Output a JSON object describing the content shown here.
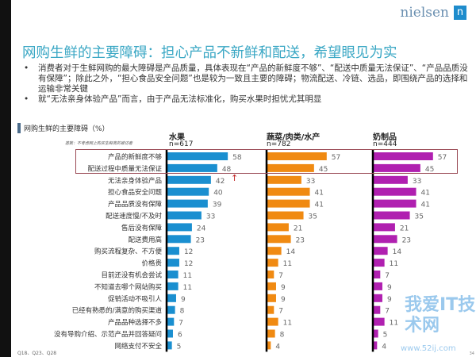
{
  "header": {
    "logo": "nielsen",
    "logo_mark": "n",
    "title": "网购生鲜的主要障碍：担心产品不新鲜和配送，希望眼见为实",
    "bullets": [
      "消费者对于生鲜网购的最大障碍是产品质量，具体表现在“产品的新鲜度不够”、“配送中质量无法保证”、“产品品质没有保障”；除此之外，“担心食品安全问题”也是较为一致且主要的障碍；物流配送、冷链、选品，即围绕产品的选择和运输非常关键",
      "就“无法亲身体验产品”而言，由于产品无法标准化，购买水果时担忧尤其明显"
    ]
  },
  "chart_data": {
    "type": "bar",
    "orientation": "horizontal",
    "title": "网购生鲜的主要障碍（%）",
    "base_note": "基数：不考虑网上购买生鲜类的被访者",
    "categories": [
      "产品的新鲜度不够",
      "配送过程中质量无法保证",
      "无法亲身体验产品",
      "担心食品安全问题",
      "产品品质没有保障",
      "配送速度慢/不及时",
      "售后没有保障",
      "配送费用高",
      "购买流程复杂、不方便",
      "价格贵",
      "目前还没有机会尝试",
      "不知道去哪个网站购买",
      "促销活动不吸引人",
      "已经有熟悉的/满意的购买渠道",
      "产品品种选择不多",
      "没有导购介绍、示范产品并回答疑问",
      "网络支付不安全"
    ],
    "series": [
      {
        "name": "水果",
        "n": "n=617",
        "color": "#1a8fd0",
        "values": [
          58,
          48,
          42,
          40,
          39,
          33,
          24,
          23,
          12,
          12,
          11,
          11,
          9,
          8,
          7,
          6,
          5
        ]
      },
      {
        "name": "蔬菜/肉类/水产",
        "n": "n=782",
        "color": "#f08a12",
        "values": [
          57,
          45,
          33,
          41,
          41,
          35,
          21,
          23,
          14,
          11,
          7,
          9,
          9,
          7,
          11,
          8,
          4
        ]
      },
      {
        "name": "奶制品",
        "n": "n=444",
        "color": "#b020b0",
        "values": [
          57,
          45,
          33,
          41,
          41,
          35,
          21,
          23,
          14,
          11,
          7,
          9,
          9,
          7,
          11,
          5,
          4
        ]
      }
    ],
    "highlight_color": "#9a4a55",
    "arrow": "↑"
  },
  "footer": {
    "source": "Q18、Q23、Q28",
    "page": "34"
  },
  "watermark": {
    "text": "我爱IT技术网",
    "url": "www.52ij.com"
  }
}
